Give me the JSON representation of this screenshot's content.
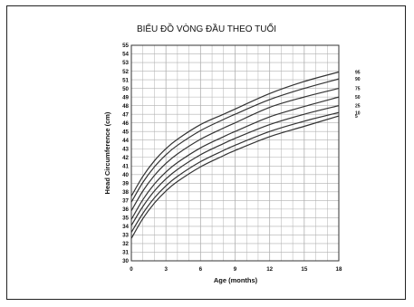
{
  "chart_data": {
    "type": "line",
    "title": "BIỂU ĐỒ VÒNG ĐẦU THEO TUỔI",
    "xlabel": "Age (months)",
    "ylabel": "Head Circumference (cm)",
    "xlim": [
      0,
      18
    ],
    "ylim": [
      30,
      55
    ],
    "x_ticks": [
      0,
      3,
      6,
      9,
      12,
      15,
      18
    ],
    "y_ticks": [
      30,
      31,
      32,
      33,
      34,
      35,
      36,
      37,
      38,
      39,
      40,
      41,
      42,
      43,
      44,
      45,
      46,
      47,
      48,
      49,
      50,
      51,
      52,
      53,
      54,
      55
    ],
    "grid": true,
    "legend": "none",
    "line_color": "#333333",
    "grid_color": "#b0b0b0",
    "x": [
      0,
      1,
      2,
      3,
      4,
      6,
      8,
      9,
      12,
      15,
      18
    ],
    "series": [
      {
        "name": "95",
        "values": [
          37.5,
          39.8,
          41.6,
          43.0,
          44.1,
          45.8,
          47.0,
          47.6,
          49.4,
          50.8,
          51.9
        ]
      },
      {
        "name": "90",
        "values": [
          36.8,
          39.1,
          40.9,
          42.3,
          43.4,
          45.1,
          46.4,
          47.0,
          48.7,
          50.0,
          51.1
        ]
      },
      {
        "name": "75",
        "values": [
          35.8,
          38.1,
          39.9,
          41.3,
          42.4,
          44.1,
          45.4,
          46.0,
          47.8,
          49.0,
          50.0
        ]
      },
      {
        "name": "50",
        "values": [
          34.8,
          37.1,
          38.9,
          40.3,
          41.4,
          43.1,
          44.4,
          45.0,
          46.7,
          47.9,
          49.0
        ]
      },
      {
        "name": "25",
        "values": [
          34.1,
          36.3,
          38.1,
          39.5,
          40.6,
          42.3,
          43.6,
          44.2,
          45.8,
          47.0,
          48.0
        ]
      },
      {
        "name": "10",
        "values": [
          33.3,
          35.5,
          37.3,
          38.7,
          39.8,
          41.5,
          42.8,
          43.4,
          45.0,
          46.2,
          47.2
        ]
      },
      {
        "name": "5",
        "values": [
          32.6,
          34.9,
          36.7,
          38.1,
          39.2,
          40.9,
          42.2,
          42.8,
          44.4,
          45.6,
          46.8
        ]
      }
    ]
  }
}
